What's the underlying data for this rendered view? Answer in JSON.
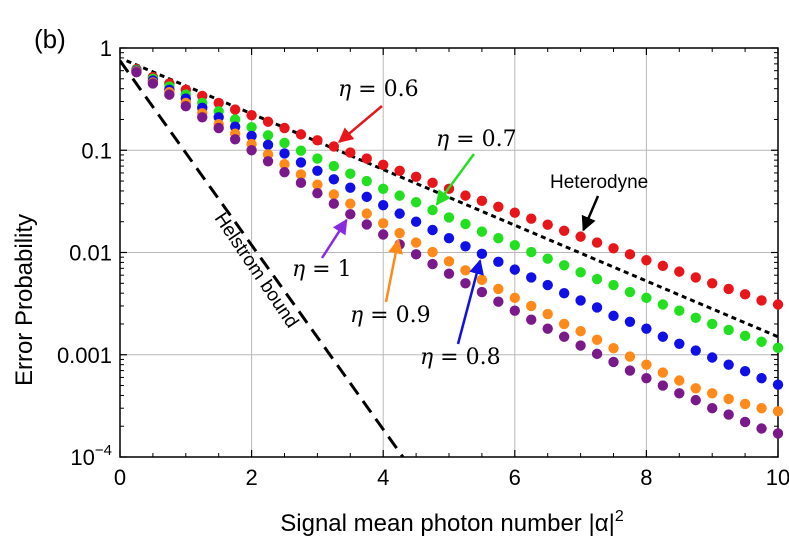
{
  "chart_data": {
    "type": "scatter",
    "panel_label": "(b)",
    "xlabel": "Signal mean photon number |α|",
    "xlabel_sup": "2",
    "ylabel": "Error Probability",
    "xlim": [
      0,
      10
    ],
    "ylim": [
      0.0001,
      1
    ],
    "y_scale": "log",
    "grid": true,
    "x_ticks": [
      "0",
      "2",
      "4",
      "6",
      "8",
      "10"
    ],
    "y_ticks": [
      {
        "label": "1",
        "value": 1
      },
      {
        "label": "0.1",
        "value": 0.1
      },
      {
        "label": "0.01",
        "value": 0.01
      },
      {
        "label": "0.001",
        "value": 0.001
      },
      {
        "label": "10",
        "sup": "−4",
        "value": 0.0001
      }
    ],
    "x": [
      0.25,
      0.5,
      0.75,
      1.0,
      1.25,
      1.5,
      1.75,
      2.0,
      2.25,
      2.5,
      2.75,
      3.0,
      3.25,
      3.5,
      3.75,
      4.0,
      4.25,
      4.5,
      4.75,
      5.0,
      5.25,
      5.5,
      5.75,
      6.0,
      6.25,
      6.5,
      6.75,
      7.0,
      7.25,
      7.5,
      7.75,
      8.0,
      8.25,
      8.5,
      8.75,
      9.0,
      9.25,
      9.5,
      9.75,
      10.0
    ],
    "series": [
      {
        "color": "#e8161b",
        "values": [
          0.62,
          0.52,
          0.45,
          0.39,
          0.34,
          0.29,
          0.25,
          0.22,
          0.19,
          0.165,
          0.143,
          0.125,
          0.109,
          0.095,
          0.083,
          0.072,
          0.063,
          0.055,
          0.048,
          0.042,
          0.036,
          0.032,
          0.028,
          0.0245,
          0.0214,
          0.0187,
          0.0163,
          0.0143,
          0.0125,
          0.011,
          0.0096,
          0.0084,
          0.0074,
          0.0065,
          0.0057,
          0.005,
          0.0044,
          0.0039,
          0.0034,
          0.0031
        ]
      },
      {
        "color": "#22e020",
        "values": [
          0.61,
          0.5,
          0.42,
          0.35,
          0.29,
          0.24,
          0.2,
          0.168,
          0.14,
          0.118,
          0.099,
          0.083,
          0.07,
          0.059,
          0.05,
          0.042,
          0.036,
          0.031,
          0.026,
          0.022,
          0.019,
          0.016,
          0.0138,
          0.0118,
          0.0101,
          0.0087,
          0.0075,
          0.0064,
          0.0055,
          0.0048,
          0.0041,
          0.0036,
          0.0031,
          0.0027,
          0.0023,
          0.002,
          0.00175,
          0.00153,
          0.00134,
          0.00117
        ]
      },
      {
        "color": "#1010e6",
        "values": [
          0.6,
          0.48,
          0.39,
          0.32,
          0.26,
          0.21,
          0.17,
          0.138,
          0.113,
          0.093,
          0.076,
          0.063,
          0.052,
          0.043,
          0.035,
          0.029,
          0.024,
          0.02,
          0.0166,
          0.0138,
          0.0115,
          0.0097,
          0.0081,
          0.0068,
          0.0057,
          0.0048,
          0.004,
          0.0034,
          0.0029,
          0.0024,
          0.0021,
          0.0018,
          0.0015,
          0.00128,
          0.0011,
          0.00094,
          0.0008,
          0.00069,
          0.00059,
          0.00051
        ]
      },
      {
        "color": "#ff8a1a",
        "values": [
          0.59,
          0.46,
          0.37,
          0.29,
          0.23,
          0.18,
          0.145,
          0.115,
          0.091,
          0.073,
          0.058,
          0.046,
          0.037,
          0.03,
          0.024,
          0.0193,
          0.0155,
          0.0125,
          0.0101,
          0.0082,
          0.0067,
          0.0054,
          0.0044,
          0.0036,
          0.003,
          0.0025,
          0.002,
          0.0017,
          0.0014,
          0.00116,
          0.00096,
          0.0008,
          0.00067,
          0.00056,
          0.00047,
          0.00042,
          0.00037,
          0.00033,
          0.0003,
          0.00028
        ]
      },
      {
        "color": "#7a1a8a",
        "values": [
          0.58,
          0.45,
          0.35,
          0.27,
          0.21,
          0.165,
          0.128,
          0.1,
          0.078,
          0.061,
          0.048,
          0.038,
          0.03,
          0.0237,
          0.0188,
          0.015,
          0.012,
          0.0096,
          0.0077,
          0.0062,
          0.005,
          0.0041,
          0.0033,
          0.0027,
          0.0022,
          0.0018,
          0.0015,
          0.00123,
          0.00102,
          0.00085,
          0.0007,
          0.00059,
          0.0005,
          0.00042,
          0.00036,
          0.0003,
          0.00026,
          0.00022,
          0.00019,
          0.00017
        ]
      }
    ],
    "curves": [
      {
        "style": "long-dash",
        "x": [
          0,
          4.3
        ],
        "y": [
          0.75,
          8e-05
        ]
      },
      {
        "style": "short-dash",
        "x": [
          0.1,
          10
        ],
        "y": [
          0.75,
          0.0015
        ]
      }
    ],
    "annotations": [
      {
        "greek": "η",
        "eq": " = 0.6",
        "color": "#e8161b"
      },
      {
        "greek": "η",
        "eq": " = 0.7",
        "color": "#22e020"
      },
      {
        "greek": "η",
        "eq": " = 1",
        "color": "#8a2be2"
      },
      {
        "greek": "η",
        "eq": " = 0.9",
        "color": "#ff8a1a"
      },
      {
        "greek": "η",
        "eq": " = 0.8",
        "color": "#1010e6"
      },
      {
        "text": "Heterodyne",
        "color": "#000000"
      },
      {
        "text": "Helstrom bound",
        "color": "#000000"
      }
    ]
  }
}
